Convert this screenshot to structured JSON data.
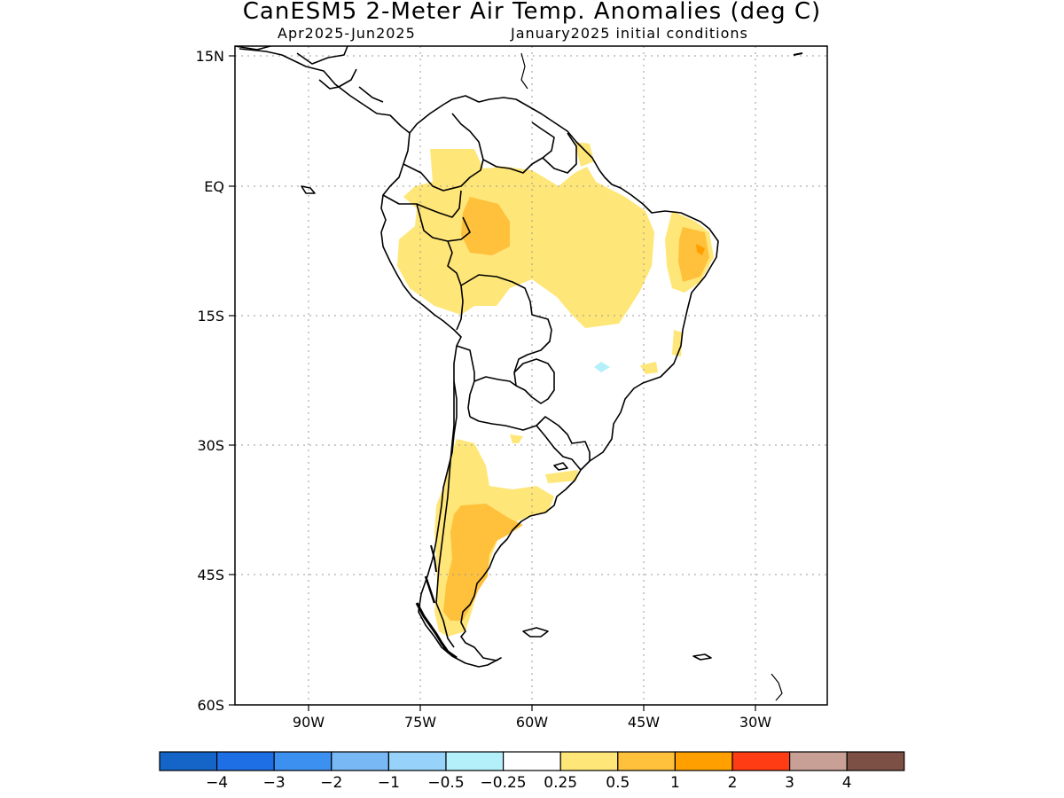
{
  "title": "CanESM5 2-Meter Air Temp. Anomalies (deg C)",
  "subtitle_left": "Apr2025-Jun2025",
  "subtitle_right": "January2025 initial conditions",
  "map": {
    "region": "South America",
    "lon_range": [
      -99,
      -19
    ],
    "lat_range": [
      -60,
      15
    ],
    "lat_ticks": [
      "15N",
      "EQ",
      "15S",
      "30S",
      "45S",
      "60S"
    ],
    "lon_ticks": [
      "90W",
      "75W",
      "60W",
      "45W",
      "30W"
    ],
    "grid": "dotted"
  },
  "colorbar": {
    "colors": [
      "#1565c8",
      "#1e6fe6",
      "#3c91f0",
      "#78b8f5",
      "#96d2fa",
      "#b4f0fa",
      "#ffffff",
      "#ffe678",
      "#ffc03c",
      "#ffa000",
      "#ff3c14",
      "#c8a096",
      "#7d5046"
    ],
    "labels": [
      "-4",
      "-3",
      "-2",
      "-1",
      "-0.5",
      "-0.25",
      "0.25",
      "0.5",
      "1",
      "2",
      "3",
      "4"
    ]
  }
}
